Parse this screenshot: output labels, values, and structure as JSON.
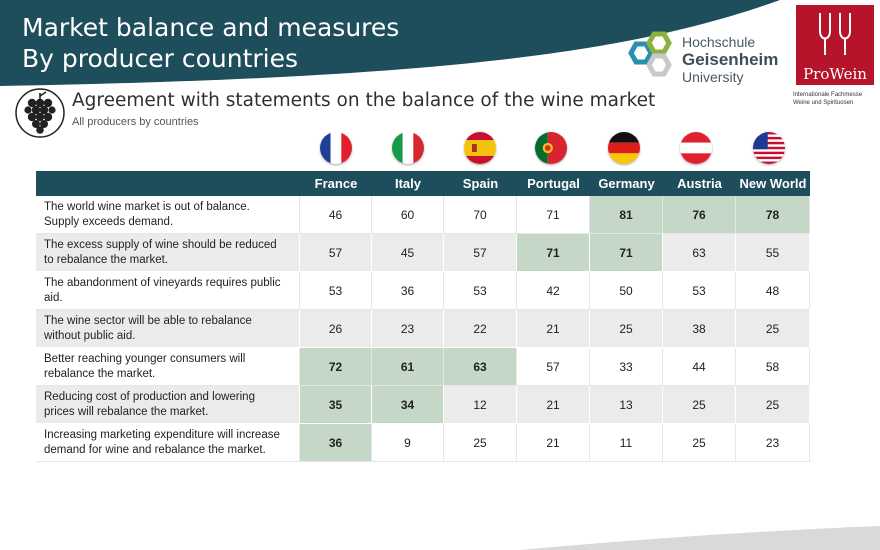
{
  "header": {
    "title_line1": "Market balance and measures",
    "title_line2": "By producer countries",
    "band_color": "#1e4d5c"
  },
  "logos": {
    "hgu_line1": "Hochschule",
    "hgu_line2": "Geisenheim",
    "hgu_line3": "University",
    "prowein_name": "ProWein",
    "prowein_sub_line1": "Internationale Fachmesse",
    "prowein_sub_line2": "Weine und Spirituosen"
  },
  "chart_data": {
    "type": "table",
    "title": "Agreement with statements on the balance of the wine market",
    "subtitle": "All producers by countries",
    "columns": [
      "France",
      "Italy",
      "Spain",
      "Portugal",
      "Germany",
      "Austria",
      "New World"
    ],
    "flag_icons": [
      "france-flag-icon",
      "italy-flag-icon",
      "spain-flag-icon",
      "portugal-flag-icon",
      "germany-flag-icon",
      "austria-flag-icon",
      "usa-flag-icon"
    ],
    "highlight_color": "#c5d8c8",
    "rows": [
      {
        "statement_line1": "The world wine market is out of balance.",
        "statement_line2": "Supply exceeds demand.",
        "values": [
          46,
          60,
          70,
          71,
          81,
          76,
          78
        ],
        "highlight": [
          false,
          false,
          false,
          false,
          true,
          true,
          true
        ]
      },
      {
        "statement_line1": "The excess supply of wine should be reduced",
        "statement_line2": "to rebalance the market.",
        "values": [
          57,
          45,
          57,
          71,
          71,
          63,
          55
        ],
        "highlight": [
          false,
          false,
          false,
          true,
          true,
          false,
          false
        ]
      },
      {
        "statement_line1": "The abandonment of vineyards requires public",
        "statement_line2": "aid.",
        "values": [
          53,
          36,
          53,
          42,
          50,
          53,
          48
        ],
        "highlight": [
          false,
          false,
          false,
          false,
          false,
          false,
          false
        ]
      },
      {
        "statement_line1": "The wine sector will be able to rebalance",
        "statement_line2": "without public aid.",
        "values": [
          26,
          23,
          22,
          21,
          25,
          38,
          25
        ],
        "highlight": [
          false,
          false,
          false,
          false,
          false,
          false,
          false
        ]
      },
      {
        "statement_line1": "Better reaching younger consumers will",
        "statement_line2": "rebalance the market.",
        "values": [
          72,
          61,
          63,
          57,
          33,
          44,
          58
        ],
        "highlight": [
          true,
          true,
          true,
          false,
          false,
          false,
          false
        ]
      },
      {
        "statement_line1": "Reducing cost of production and lowering",
        "statement_line2": "prices will rebalance the market.",
        "values": [
          35,
          34,
          12,
          21,
          13,
          25,
          25
        ],
        "highlight": [
          true,
          true,
          false,
          false,
          false,
          false,
          false
        ]
      },
      {
        "statement_line1": "Increasing marketing expenditure will increase",
        "statement_line2": "demand for wine and rebalance the market.",
        "values": [
          36,
          9,
          25,
          21,
          11,
          25,
          23
        ],
        "highlight": [
          true,
          false,
          false,
          false,
          false,
          false,
          false
        ]
      }
    ]
  }
}
